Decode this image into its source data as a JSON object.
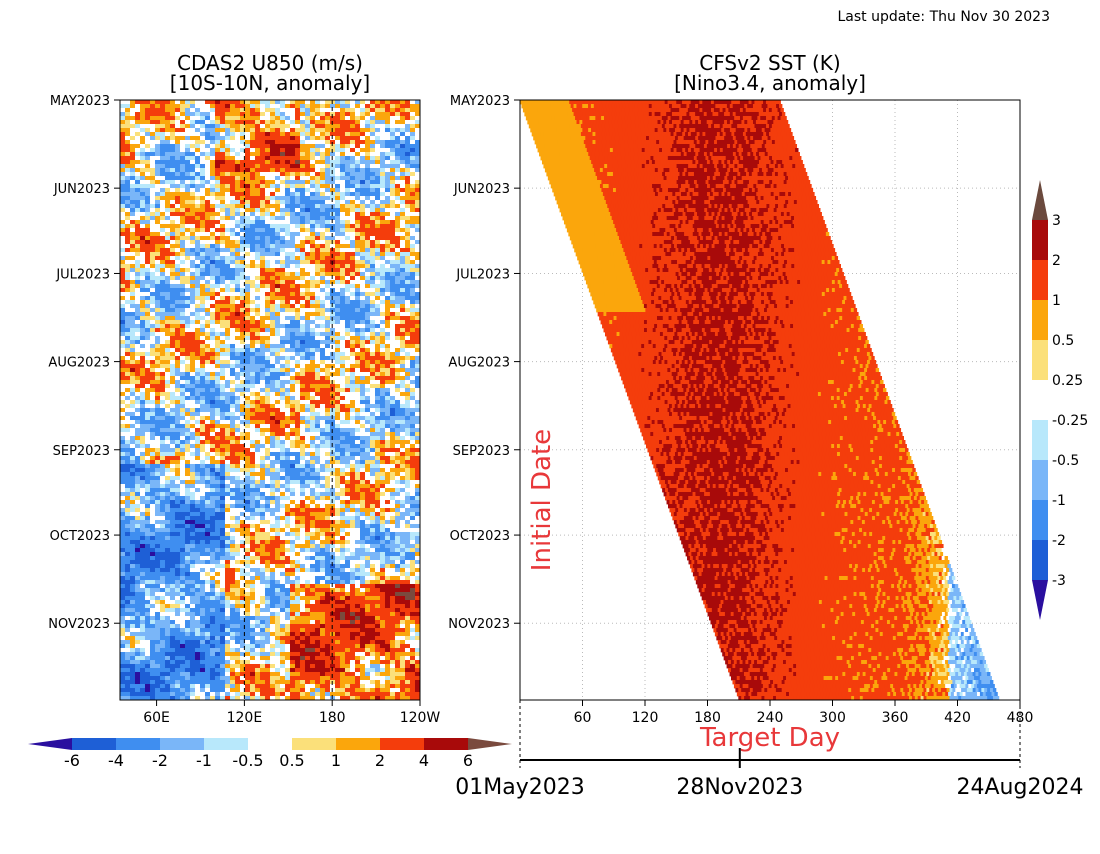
{
  "last_update": "Last update: Thu Nov 30 2023",
  "chart_data": [
    {
      "type": "heatmap",
      "title": "CDAS2 U850 (m/s)",
      "subtitle": "[10S-10N, anomaly]",
      "x_ticks": [
        "60E",
        "120E",
        "180",
        "120W"
      ],
      "x_tick_values": [
        60,
        120,
        180,
        240
      ],
      "xlim": [
        35,
        240
      ],
      "y_ticks": [
        "MAY2023",
        "JUN2023",
        "JUL2023",
        "AUG2023",
        "SEP2023",
        "OCT2023",
        "NOV2023"
      ],
      "ylim": [
        "2023-05-01",
        "2023-11-28"
      ],
      "dashed_lines_x": [
        120,
        180
      ],
      "colorbar": {
        "labels": [
          "-6",
          "-4",
          "-2",
          "-1",
          "-0.5",
          "0.5",
          "1",
          "2",
          "4",
          "6"
        ],
        "colors": [
          "#2a0f9f",
          "#1e5fd6",
          "#3f8ef0",
          "#7ab6f8",
          "#b8e8fb",
          "#ffffff",
          "#fbe07a",
          "#fba60c",
          "#f43d0c",
          "#a80a0a",
          "#7a4a3e"
        ]
      }
    },
    {
      "type": "heatmap",
      "title": "CFSv2 SST (K)",
      "subtitle": "[Nino3.4, anomaly]",
      "xlabel": "Target Day",
      "ylabel": "Initial Date",
      "x_ticks": [
        "60",
        "120",
        "180",
        "240",
        "300",
        "360",
        "420",
        "480"
      ],
      "x_tick_values": [
        60,
        120,
        180,
        240,
        300,
        360,
        420,
        480
      ],
      "xlim": [
        0,
        480
      ],
      "y_ticks": [
        "MAY2023",
        "JUN2023",
        "JUL2023",
        "AUG2023",
        "SEP2023",
        "OCT2023",
        "NOV2023"
      ],
      "ylim": [
        "2023-05-01",
        "2023-11-28"
      ],
      "date_axis": {
        "labels": [
          "01May2023",
          "28Nov2023",
          "24Aug2024"
        ]
      },
      "colorbar": {
        "labels": [
          "3",
          "2",
          "1",
          "0.5",
          "0.25",
          "-0.25",
          "-0.5",
          "-1",
          "-2",
          "-3"
        ],
        "colors": [
          "#6b4a3e",
          "#a80a0a",
          "#f43d0c",
          "#fba60c",
          "#fbe07a",
          "#ffffff",
          "#b8e8fb",
          "#7ab6f8",
          "#3f8ef0",
          "#1e5fd6",
          "#2a0f9f"
        ]
      }
    }
  ]
}
